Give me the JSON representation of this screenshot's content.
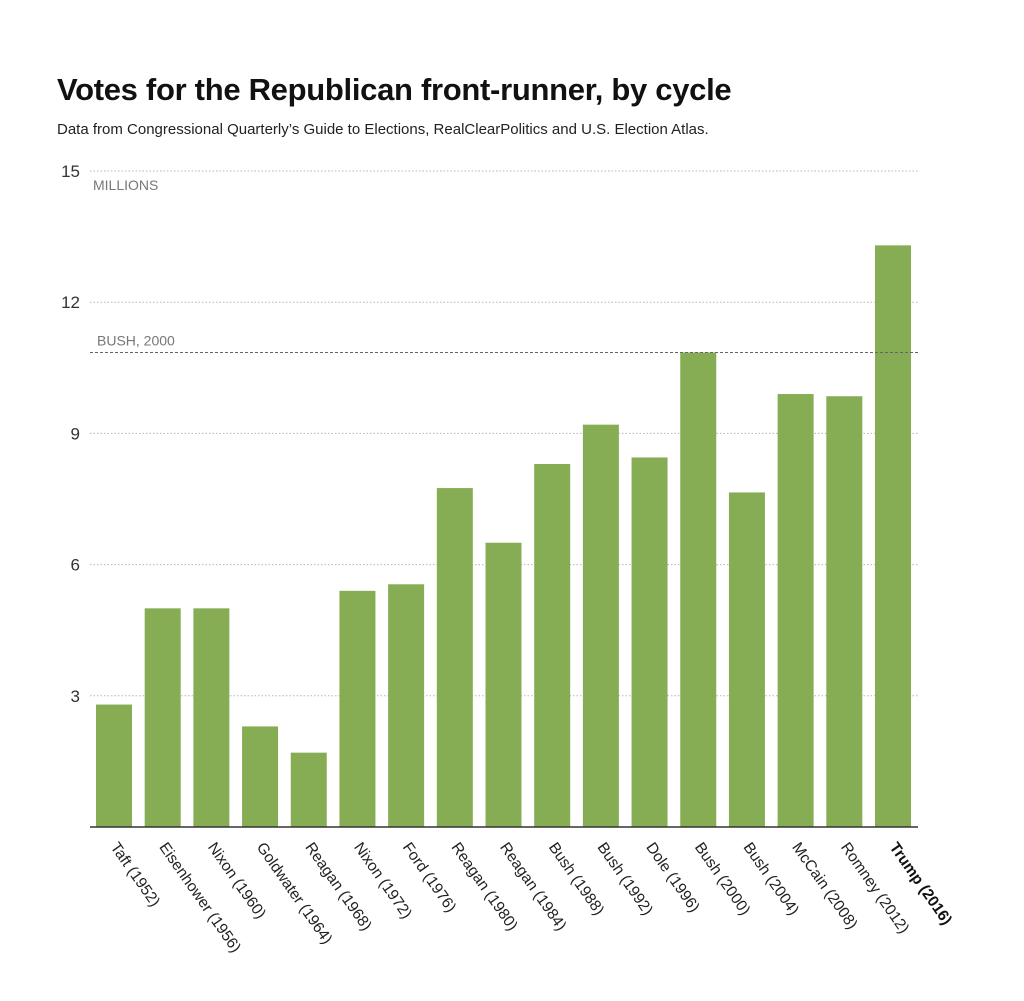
{
  "title": "Votes for the Republican front-runner, by cycle",
  "subtitle": "Data from Congressional Quarterly’s Guide to Elections, RealClearPolitics and U.S. Election Atlas.",
  "chart_data": {
    "type": "bar",
    "title": "Votes for the Republican front-runner, by cycle",
    "ylabel": "MILLIONS",
    "xlabel": "",
    "ylim": [
      0,
      15
    ],
    "yticks": [
      3,
      6,
      9,
      12,
      15
    ],
    "tick_labels": [
      "3",
      "6",
      "9",
      "12",
      "15"
    ],
    "categories": [
      "Taft (1952)",
      "Eisenhower (1956)",
      "Nixon (1960)",
      "Goldwater (1964)",
      "Reagan (1968)",
      "Nixon (1972)",
      "Ford (1976)",
      "Reagan (1980)",
      "Reagan (1984)",
      "Bush (1988)",
      "Bush (1992)",
      "Dole (1996)",
      "Bush (2000)",
      "Bush (2004)",
      "McCain (2008)",
      "Romney (2012)",
      "Trump (2016)"
    ],
    "values": [
      2.8,
      5.0,
      5.0,
      2.3,
      1.7,
      5.4,
      5.55,
      7.75,
      6.5,
      8.3,
      9.2,
      8.45,
      10.85,
      7.65,
      9.9,
      9.85,
      13.3
    ],
    "highlight": "Trump (2016)",
    "reference_line": {
      "label": "BUSH, 2000",
      "value": 10.85
    },
    "grid": true,
    "legend": "none",
    "colors": {
      "bar": "#86ad54",
      "axis": "#333333",
      "grid": "#b5b5b5",
      "reference": "#666666"
    }
  }
}
